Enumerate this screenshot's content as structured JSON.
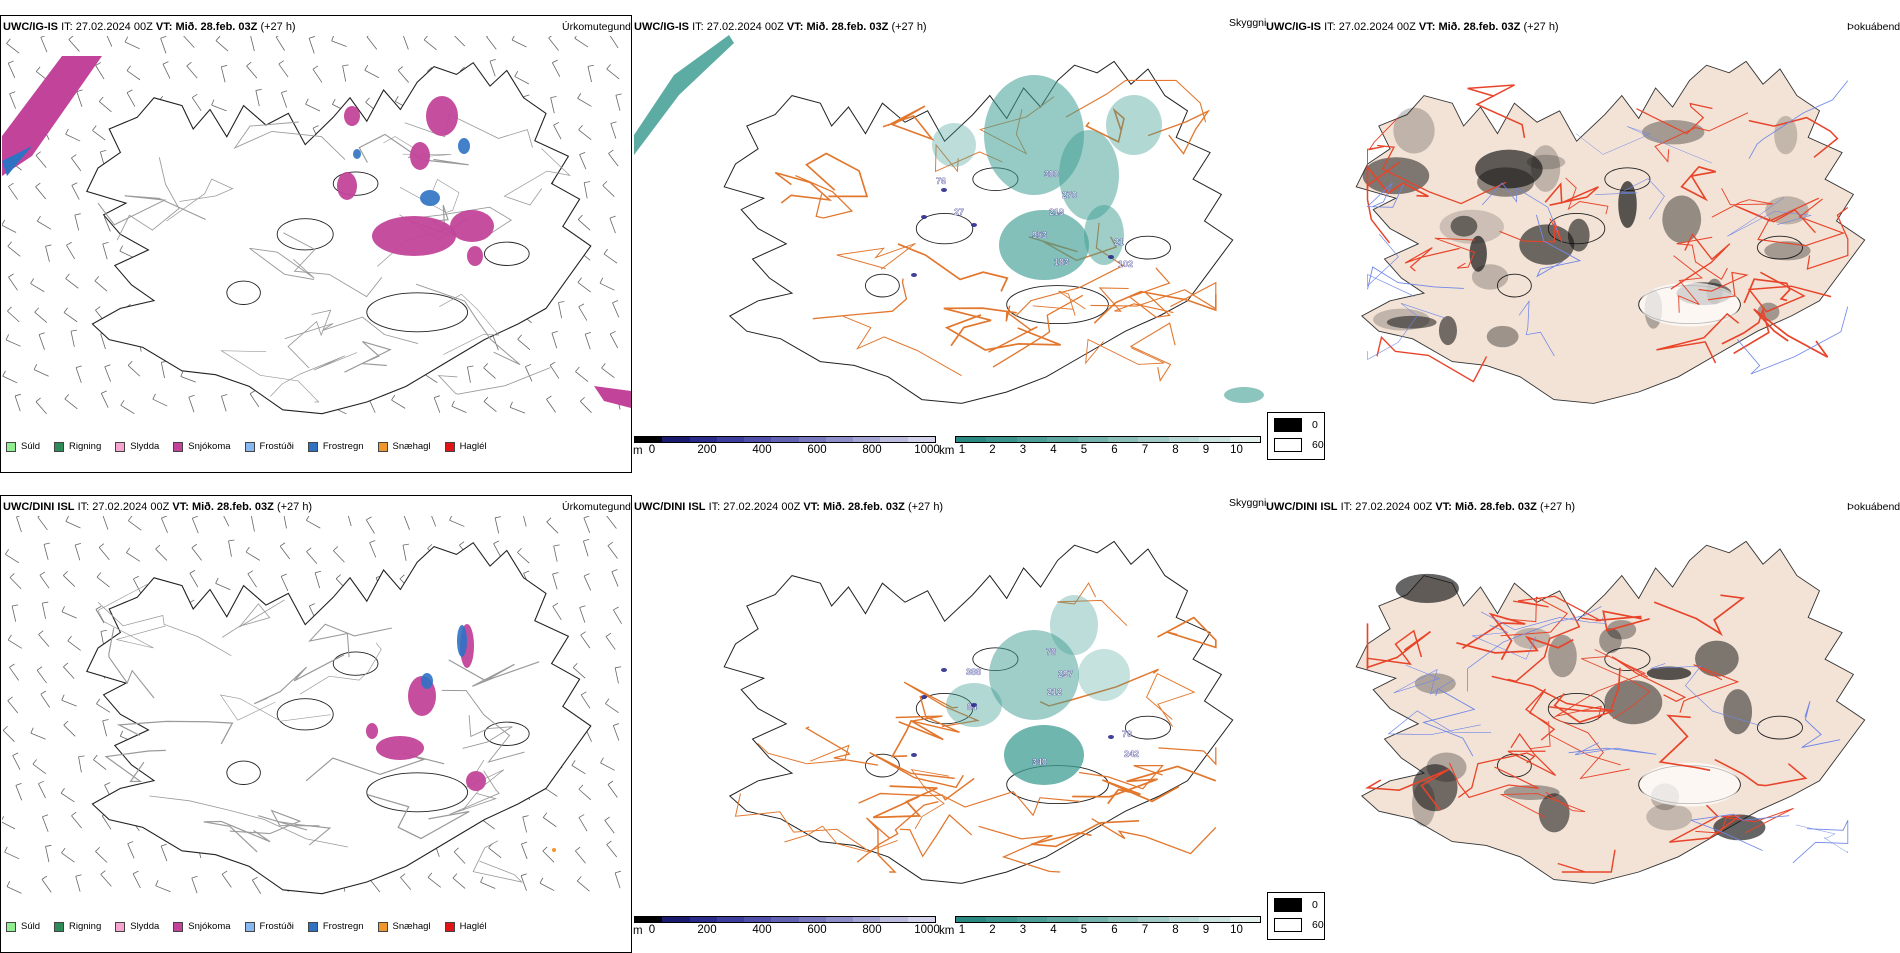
{
  "rows": [
    {
      "model": "UWC/IG-IS",
      "it_label": "IT:",
      "it_value": "27.02.2024 00Z",
      "vt_label": "VT:",
      "vt_value": "Mið. 28.feb. 03Z",
      "lead": "(+27 h)"
    },
    {
      "model": "UWC/DINI ISL",
      "it_label": "IT:",
      "it_value": "27.02.2024 00Z",
      "vt_label": "VT:",
      "vt_value": "Mið. 28.feb. 03Z",
      "lead": "(+27 h)"
    }
  ],
  "panel_names": {
    "precip": "Úrkomutegund",
    "visibility": "Skyggni",
    "fog": "Þokuábendi"
  },
  "precip_legend": [
    {
      "label": "Súld",
      "color": "#90ee90"
    },
    {
      "label": "Rigning",
      "color": "#2e8b57"
    },
    {
      "label": "Slydda",
      "color": "#f4a6cf"
    },
    {
      "label": "Snjókoma",
      "color": "#c2449a"
    },
    {
      "label": "Frostúði",
      "color": "#87b8f0"
    },
    {
      "label": "Frostregn",
      "color": "#2f72c4"
    },
    {
      "label": "Snæhagl",
      "color": "#f0962a"
    },
    {
      "label": "Haglél",
      "color": "#e01515"
    }
  ],
  "height_bar": {
    "unit": "m",
    "ticks": [
      "0",
      "200",
      "400",
      "600",
      "800",
      "1000"
    ],
    "colors": [
      "#000000",
      "#1a1a6e",
      "#2b2b8c",
      "#3d3d9e",
      "#5050aa",
      "#6363b4",
      "#7878bf",
      "#8e8ec9",
      "#a5a5d4",
      "#bcbcdf",
      "#d2d2ea"
    ]
  },
  "vis_bar": {
    "unit": "km",
    "ticks": [
      "1",
      "2",
      "3",
      "4",
      "5",
      "6",
      "7",
      "8",
      "9",
      "10"
    ],
    "colors": [
      "#2a8a82",
      "#3a948b",
      "#4c9e96",
      "#5fa8a1",
      "#74b3ad",
      "#89beb9",
      "#9fcac5",
      "#b5d6d2",
      "#cbe2df",
      "#e2efed"
    ]
  },
  "fog_legend": [
    {
      "label": "0",
      "color": "#000000"
    },
    {
      "label": "60",
      "color": "#ffffff"
    }
  ],
  "peaks_top": [
    "300",
    "270",
    "219",
    "953",
    "183",
    "102",
    "21",
    "27",
    "76"
  ],
  "peaks_bottom": [
    "78",
    "297",
    "212",
    "340",
    "242",
    "70",
    "388",
    "84"
  ],
  "colors": {
    "road": "#e2772e",
    "fog_land": "#f3e3d6",
    "fog_road": "#e8442a",
    "river": "#6f86e8",
    "precip_purple": "#c2449a",
    "teal": "#3f9e93"
  }
}
